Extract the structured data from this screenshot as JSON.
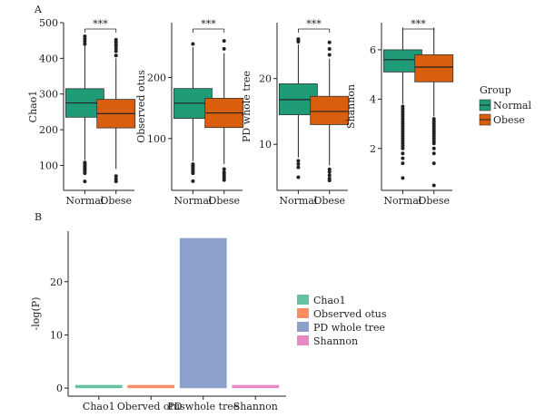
{
  "chart_data": [
    {
      "panel": "A",
      "type": "boxplot",
      "groups": [
        "Normal",
        "Obese"
      ],
      "group_colors": [
        "#1f9b77",
        "#d95f0e"
      ],
      "legend": {
        "title": "Group",
        "placement": "right",
        "entries": [
          "Normal",
          "Obese"
        ]
      },
      "subplots": [
        {
          "ylabel": "Chao1",
          "ylim": [
            30,
            500
          ],
          "yticks": [
            100,
            200,
            300,
            400,
            500
          ],
          "significance": "***",
          "boxes": [
            {
              "group": "Normal",
              "q1": 235,
              "median": 275,
              "q3": 315,
              "whisker_low": 115,
              "whisker_high": 435,
              "outliers": [
                108,
                104,
                100,
                96,
                92,
                88,
                84,
                78,
                55,
                440,
                448,
                455,
                462
              ]
            },
            {
              "group": "Obese",
              "q1": 205,
              "median": 245,
              "q3": 285,
              "whisker_low": 90,
              "whisker_high": 400,
              "outliers": [
                70,
                62,
                55,
                408,
                420,
                428,
                436,
                440,
                446,
                452
              ]
            }
          ]
        },
        {
          "ylabel": "Observed otus",
          "ylim": [
            15,
            290
          ],
          "yticks": [
            100,
            200
          ],
          "significance": "***",
          "boxes": [
            {
              "group": "Normal",
              "q1": 133,
              "median": 158,
              "q3": 182,
              "whisker_low": 63,
              "whisker_high": 250,
              "outliers": [
                58,
                55,
                52,
                49,
                46,
                43,
                30,
                255
              ]
            },
            {
              "group": "Obese",
              "q1": 118,
              "median": 142,
              "q3": 166,
              "whisker_low": 58,
              "whisker_high": 240,
              "outliers": [
                50,
                45,
                42,
                38,
                35,
                32,
                247,
                260
              ]
            }
          ]
        },
        {
          "ylabel": "PD whole tree",
          "ylim": [
            3,
            28.5
          ],
          "yticks": [
            10,
            20
          ],
          "significance": "***",
          "boxes": [
            {
              "group": "Normal",
              "q1": 14.5,
              "median": 16.8,
              "q3": 19.2,
              "whisker_low": 8,
              "whisker_high": 25.2,
              "outliers": [
                7.5,
                7,
                6.5,
                5,
                25.6,
                25.8,
                26
              ]
            },
            {
              "group": "Obese",
              "q1": 13,
              "median": 15,
              "q3": 17.3,
              "whisker_low": 6.8,
              "whisker_high": 23,
              "outliers": [
                6.2,
                5.8,
                5.3,
                4.8,
                4.5,
                23.6,
                24.5,
                25.5
              ]
            }
          ]
        },
        {
          "ylabel": "Shannon",
          "ylim": [
            0.3,
            7.1
          ],
          "yticks": [
            2,
            4,
            6
          ],
          "significance": "***",
          "boxes": [
            {
              "group": "Normal",
              "q1": 5.1,
              "median": 5.6,
              "q3": 6.0,
              "whisker_low": 3.8,
              "whisker_high": 6.9,
              "outliers": [
                3.7,
                3.6,
                3.5,
                3.4,
                3.3,
                3.2,
                3.1,
                3.0,
                2.9,
                2.8,
                2.7,
                2.6,
                2.5,
                2.4,
                2.3,
                2.2,
                2.1,
                2.0,
                1.8,
                1.6,
                1.4,
                0.8
              ]
            },
            {
              "group": "Obese",
              "q1": 4.7,
              "median": 5.3,
              "q3": 5.8,
              "whisker_low": 3.3,
              "whisker_high": 6.9,
              "outliers": [
                3.2,
                3.1,
                3.0,
                2.9,
                2.8,
                2.7,
                2.6,
                2.5,
                2.4,
                2.3,
                2.2,
                2.0,
                1.8,
                1.4,
                0.5
              ]
            }
          ]
        }
      ]
    },
    {
      "panel": "B",
      "type": "bar",
      "categories": [
        "Chao1",
        "Oberved otus",
        "PD whole tree",
        "Shannon"
      ],
      "values": [
        0.6,
        0.6,
        28.2,
        0.6
      ],
      "colors": [
        "#66c2a5",
        "#fc8d62",
        "#8da0cb",
        "#e78ac3"
      ],
      "ylabel": "-log(P)",
      "ylim": [
        -1.5,
        29.5
      ],
      "yticks": [
        0,
        10,
        20
      ],
      "legend": {
        "placement": "right",
        "entries": [
          "Chao1",
          "Observed otus",
          "PD whole tree",
          "Shannon"
        ]
      }
    }
  ]
}
